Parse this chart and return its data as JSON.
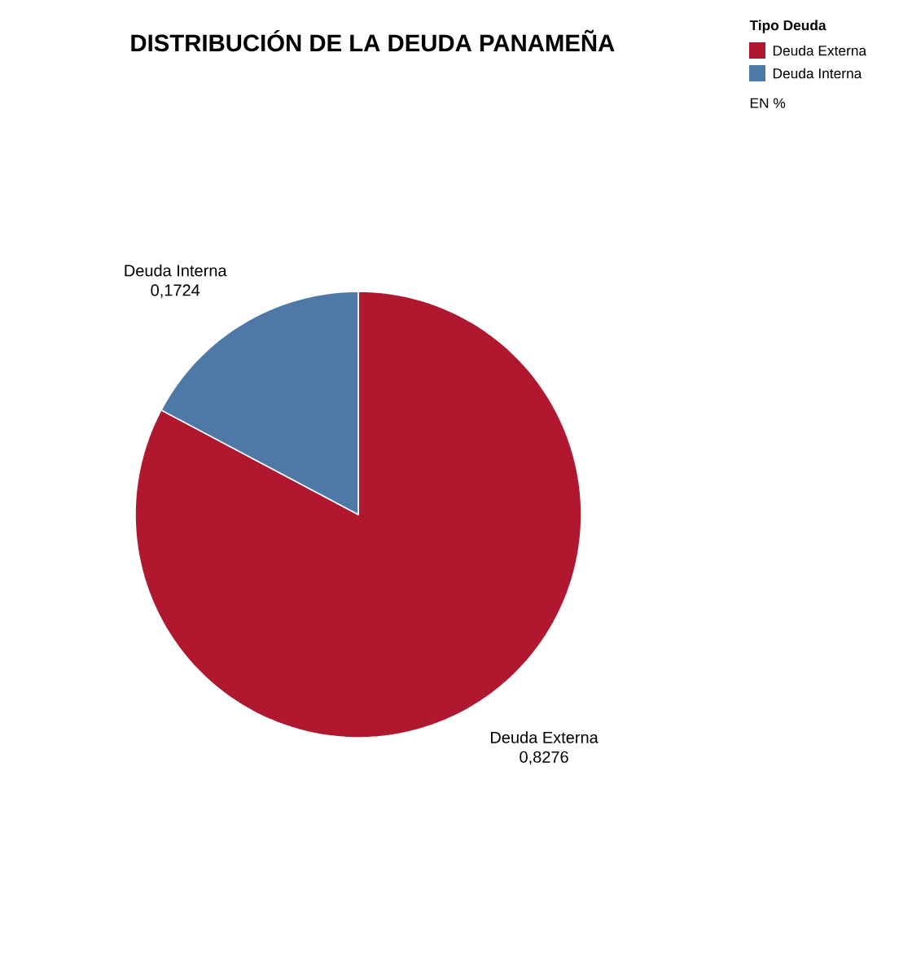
{
  "chart_data": {
    "type": "pie",
    "title": "DISTRIBUCIÓN DE LA DEUDA PANAMEÑA",
    "categories": [
      "Deuda Externa",
      "Deuda Interna"
    ],
    "values": [
      0.8276,
      0.1724
    ],
    "value_labels": [
      "0,8276",
      "0,1724"
    ],
    "colors": [
      "#b01830",
      "#4e79a7"
    ],
    "legend": "top right",
    "legend_title": "Tipo Deuda",
    "annotations": [
      "EN %"
    ]
  }
}
